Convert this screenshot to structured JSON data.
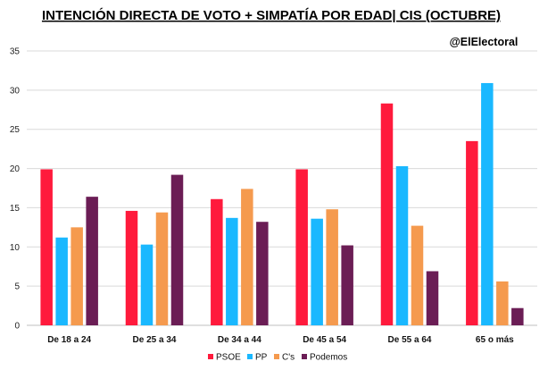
{
  "chart_data": {
    "type": "bar",
    "title": "INTENCIÓN DIRECTA DE VOTO + SIMPATÍA POR EDAD| CIS (OCTUBRE)",
    "annotation": "@ElElectoral",
    "categories": [
      "De 18 a 24",
      "De 25 a 34",
      "De 34 a 44",
      "De 45 a 54",
      "De 55 a 64",
      "65 o más"
    ],
    "series": [
      {
        "name": "PSOE",
        "color": "#ff1a3c",
        "values": [
          19.9,
          14.6,
          16.1,
          19.9,
          28.3,
          23.5
        ]
      },
      {
        "name": "PP",
        "color": "#1ab8ff",
        "values": [
          11.2,
          10.3,
          13.7,
          13.6,
          20.3,
          30.9
        ]
      },
      {
        "name": "C's",
        "color": "#f59a4e",
        "values": [
          12.5,
          14.4,
          17.4,
          14.8,
          12.7,
          5.6
        ]
      },
      {
        "name": "Podemos",
        "color": "#6b1d55",
        "values": [
          16.4,
          19.2,
          13.2,
          10.2,
          6.9,
          2.2
        ]
      }
    ],
    "ylim": [
      0,
      35
    ],
    "yticks": [
      0,
      5,
      10,
      15,
      20,
      25,
      30,
      35
    ],
    "grid": true,
    "legend_position": "bottom"
  }
}
